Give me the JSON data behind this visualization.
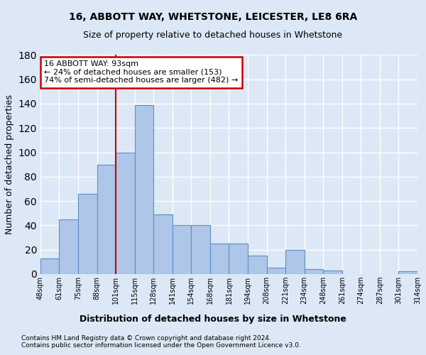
{
  "title1": "16, ABBOTT WAY, WHETSTONE, LEICESTER, LE8 6RA",
  "title2": "Size of property relative to detached houses in Whetstone",
  "xlabel": "Distribution of detached houses by size in Whetstone",
  "ylabel": "Number of detached properties",
  "bar_values": [
    13,
    45,
    66,
    90,
    100,
    139,
    49,
    40,
    40,
    25,
    25,
    15,
    5,
    20,
    4,
    3,
    0,
    0,
    0,
    2
  ],
  "bin_labels": [
    "48sqm",
    "61sqm",
    "75sqm",
    "88sqm",
    "101sqm",
    "115sqm",
    "128sqm",
    "141sqm",
    "154sqm",
    "168sqm",
    "181sqm",
    "194sqm",
    "208sqm",
    "221sqm",
    "234sqm",
    "248sqm",
    "261sqm",
    "274sqm",
    "287sqm",
    "301sqm",
    "314sqm"
  ],
  "bar_color": "#aec6e8",
  "bar_edge_color": "#5b8fc9",
  "ylim": [
    0,
    180
  ],
  "yticks": [
    0,
    20,
    40,
    60,
    80,
    100,
    120,
    140,
    160,
    180
  ],
  "vline_after_bin": 3,
  "annotation_text": "16 ABBOTT WAY: 93sqm\n← 24% of detached houses are smaller (153)\n74% of semi-detached houses are larger (482) →",
  "annotation_box_color": "#ffffff",
  "annotation_box_edge": "#cc0000",
  "vline_color": "#cc0000",
  "footer1": "Contains HM Land Registry data © Crown copyright and database right 2024.",
  "footer2": "Contains public sector information licensed under the Open Government Licence v3.0.",
  "background_color": "#dce8f5",
  "grid_color": "#ffffff"
}
